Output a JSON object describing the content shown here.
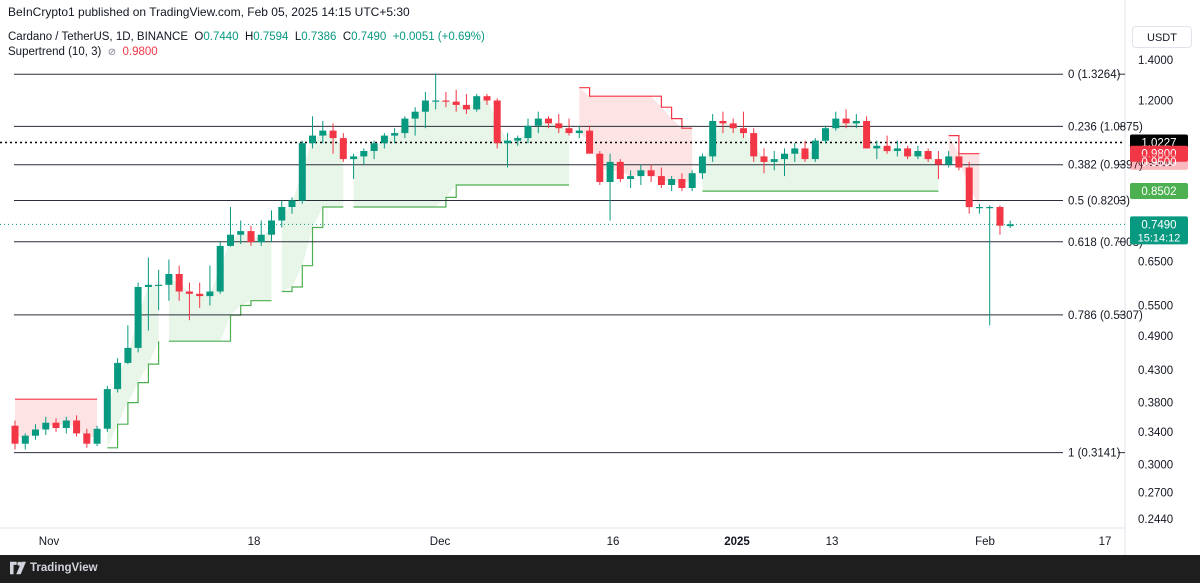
{
  "header": {
    "published": "BeInCrypto1 published on TradingView.com, Feb 05, 2025 14:15 UTC+5:30",
    "currency": "USDT"
  },
  "legend": {
    "symbol": "Cardano / TetherUS, 1D, BINANCE",
    "open_label": "O",
    "open": "0.7440",
    "high_label": "H",
    "high": "0.7594",
    "low_label": "L",
    "low": "0.7386",
    "close_label": "C",
    "close": "0.7490",
    "change": "+0.0051 (+0.69%)",
    "indicator": "Supertrend (10, 3)",
    "indicator_icon": "hidden-eye-icon",
    "indicator_value": "0.9800"
  },
  "footer": {
    "brand": "TradingView",
    "logo": "tradingview-logo-icon"
  },
  "colors": {
    "up": "#089981",
    "down": "#f23645",
    "supertrend_up": "#4caf50",
    "supertrend_down": "#f23645",
    "fill_up": "#e8f5e9",
    "fill_down": "#fde4e4",
    "fib_line": "#2a2e39",
    "resistance_line": "#000000"
  },
  "chart_data": {
    "type": "candlestick",
    "title": "Cardano / TetherUS, 1D, BINANCE",
    "scale": "log",
    "ylim": [
      0.23,
      1.45
    ],
    "grid": false,
    "x_ticks": [
      "Nov",
      "18",
      "Dec",
      "16",
      "2025",
      "13",
      "Feb",
      "17"
    ],
    "y_ticks": [
      "1.4000",
      "1.2000",
      "0.9500",
      "0.6500",
      "0.5500",
      "0.4900",
      "0.4300",
      "0.3800",
      "0.3400",
      "0.3000",
      "0.2700",
      "0.2440"
    ],
    "candles": [
      {
        "o": 0.348,
        "h": 0.355,
        "l": 0.318,
        "c": 0.325
      },
      {
        "o": 0.325,
        "h": 0.338,
        "l": 0.318,
        "c": 0.335
      },
      {
        "o": 0.335,
        "h": 0.35,
        "l": 0.33,
        "c": 0.343
      },
      {
        "o": 0.343,
        "h": 0.36,
        "l": 0.336,
        "c": 0.352
      },
      {
        "o": 0.352,
        "h": 0.358,
        "l": 0.34,
        "c": 0.345
      },
      {
        "o": 0.345,
        "h": 0.36,
        "l": 0.338,
        "c": 0.355
      },
      {
        "o": 0.355,
        "h": 0.362,
        "l": 0.334,
        "c": 0.338
      },
      {
        "o": 0.338,
        "h": 0.344,
        "l": 0.32,
        "c": 0.325
      },
      {
        "o": 0.325,
        "h": 0.348,
        "l": 0.322,
        "c": 0.344
      },
      {
        "o": 0.344,
        "h": 0.405,
        "l": 0.34,
        "c": 0.4
      },
      {
        "o": 0.4,
        "h": 0.45,
        "l": 0.395,
        "c": 0.442
      },
      {
        "o": 0.442,
        "h": 0.51,
        "l": 0.44,
        "c": 0.468
      },
      {
        "o": 0.468,
        "h": 0.6,
        "l": 0.46,
        "c": 0.59
      },
      {
        "o": 0.59,
        "h": 0.66,
        "l": 0.5,
        "c": 0.595
      },
      {
        "o": 0.595,
        "h": 0.63,
        "l": 0.54,
        "c": 0.595
      },
      {
        "o": 0.595,
        "h": 0.655,
        "l": 0.56,
        "c": 0.62
      },
      {
        "o": 0.62,
        "h": 0.64,
        "l": 0.56,
        "c": 0.58
      },
      {
        "o": 0.58,
        "h": 0.6,
        "l": 0.52,
        "c": 0.575
      },
      {
        "o": 0.575,
        "h": 0.6,
        "l": 0.545,
        "c": 0.57
      },
      {
        "o": 0.57,
        "h": 0.64,
        "l": 0.55,
        "c": 0.58
      },
      {
        "o": 0.58,
        "h": 0.7,
        "l": 0.575,
        "c": 0.69
      },
      {
        "o": 0.69,
        "h": 0.8,
        "l": 0.688,
        "c": 0.72
      },
      {
        "o": 0.72,
        "h": 0.76,
        "l": 0.695,
        "c": 0.73
      },
      {
        "o": 0.73,
        "h": 0.745,
        "l": 0.69,
        "c": 0.7
      },
      {
        "o": 0.7,
        "h": 0.76,
        "l": 0.69,
        "c": 0.72
      },
      {
        "o": 0.72,
        "h": 0.79,
        "l": 0.7,
        "c": 0.76
      },
      {
        "o": 0.76,
        "h": 0.82,
        "l": 0.74,
        "c": 0.8
      },
      {
        "o": 0.8,
        "h": 0.83,
        "l": 0.78,
        "c": 0.82
      },
      {
        "o": 0.82,
        "h": 1.03,
        "l": 0.81,
        "c": 1.02
      },
      {
        "o": 1.02,
        "h": 1.13,
        "l": 1.0,
        "c": 1.05
      },
      {
        "o": 1.05,
        "h": 1.11,
        "l": 1.02,
        "c": 1.07
      },
      {
        "o": 1.07,
        "h": 1.1,
        "l": 0.98,
        "c": 1.04
      },
      {
        "o": 1.04,
        "h": 1.06,
        "l": 0.95,
        "c": 0.96
      },
      {
        "o": 0.96,
        "h": 0.98,
        "l": 0.89,
        "c": 0.97
      },
      {
        "o": 0.97,
        "h": 1.0,
        "l": 0.94,
        "c": 0.99
      },
      {
        "o": 0.99,
        "h": 1.03,
        "l": 0.96,
        "c": 1.02
      },
      {
        "o": 1.02,
        "h": 1.06,
        "l": 1.0,
        "c": 1.05
      },
      {
        "o": 1.05,
        "h": 1.08,
        "l": 1.02,
        "c": 1.06
      },
      {
        "o": 1.06,
        "h": 1.13,
        "l": 1.04,
        "c": 1.12
      },
      {
        "o": 1.12,
        "h": 1.17,
        "l": 1.05,
        "c": 1.15
      },
      {
        "o": 1.15,
        "h": 1.24,
        "l": 1.08,
        "c": 1.2
      },
      {
        "o": 1.2,
        "h": 1.33,
        "l": 1.16,
        "c": 1.2
      },
      {
        "o": 1.2,
        "h": 1.24,
        "l": 1.17,
        "c": 1.195
      },
      {
        "o": 1.195,
        "h": 1.25,
        "l": 1.15,
        "c": 1.18
      },
      {
        "o": 1.18,
        "h": 1.23,
        "l": 1.14,
        "c": 1.16
      },
      {
        "o": 1.16,
        "h": 1.23,
        "l": 1.15,
        "c": 1.22
      },
      {
        "o": 1.22,
        "h": 1.23,
        "l": 1.18,
        "c": 1.2
      },
      {
        "o": 1.2,
        "h": 1.21,
        "l": 1.0,
        "c": 1.02
      },
      {
        "o": 1.02,
        "h": 1.06,
        "l": 0.93,
        "c": 1.03
      },
      {
        "o": 1.03,
        "h": 1.05,
        "l": 1.01,
        "c": 1.04
      },
      {
        "o": 1.04,
        "h": 1.12,
        "l": 1.02,
        "c": 1.09
      },
      {
        "o": 1.09,
        "h": 1.15,
        "l": 1.06,
        "c": 1.12
      },
      {
        "o": 1.12,
        "h": 1.13,
        "l": 1.08,
        "c": 1.1
      },
      {
        "o": 1.1,
        "h": 1.14,
        "l": 1.06,
        "c": 1.08
      },
      {
        "o": 1.08,
        "h": 1.12,
        "l": 1.05,
        "c": 1.06
      },
      {
        "o": 1.06,
        "h": 1.09,
        "l": 1.04,
        "c": 1.07
      },
      {
        "o": 1.07,
        "h": 1.09,
        "l": 0.99,
        "c": 0.98
      },
      {
        "o": 0.98,
        "h": 0.99,
        "l": 0.87,
        "c": 0.88
      },
      {
        "o": 0.88,
        "h": 0.98,
        "l": 0.76,
        "c": 0.95
      },
      {
        "o": 0.95,
        "h": 0.96,
        "l": 0.88,
        "c": 0.89
      },
      {
        "o": 0.89,
        "h": 0.92,
        "l": 0.86,
        "c": 0.9
      },
      {
        "o": 0.9,
        "h": 0.94,
        "l": 0.87,
        "c": 0.92
      },
      {
        "o": 0.92,
        "h": 0.94,
        "l": 0.88,
        "c": 0.9
      },
      {
        "o": 0.9,
        "h": 0.93,
        "l": 0.86,
        "c": 0.87
      },
      {
        "o": 0.87,
        "h": 0.9,
        "l": 0.85,
        "c": 0.89
      },
      {
        "o": 0.89,
        "h": 0.91,
        "l": 0.85,
        "c": 0.86
      },
      {
        "o": 0.86,
        "h": 0.92,
        "l": 0.85,
        "c": 0.91
      },
      {
        "o": 0.91,
        "h": 0.98,
        "l": 0.89,
        "c": 0.97
      },
      {
        "o": 0.97,
        "h": 1.14,
        "l": 0.95,
        "c": 1.11
      },
      {
        "o": 1.11,
        "h": 1.15,
        "l": 1.06,
        "c": 1.1
      },
      {
        "o": 1.1,
        "h": 1.12,
        "l": 1.06,
        "c": 1.08
      },
      {
        "o": 1.08,
        "h": 1.15,
        "l": 1.04,
        "c": 1.06
      },
      {
        "o": 1.06,
        "h": 1.08,
        "l": 0.95,
        "c": 0.97
      },
      {
        "o": 0.97,
        "h": 1.0,
        "l": 0.91,
        "c": 0.95
      },
      {
        "o": 0.95,
        "h": 0.99,
        "l": 0.92,
        "c": 0.96
      },
      {
        "o": 0.96,
        "h": 1.0,
        "l": 0.9,
        "c": 0.98
      },
      {
        "o": 0.98,
        "h": 1.02,
        "l": 0.95,
        "c": 1.0
      },
      {
        "o": 1.0,
        "h": 1.03,
        "l": 0.95,
        "c": 0.96
      },
      {
        "o": 0.96,
        "h": 1.04,
        "l": 0.95,
        "c": 1.03
      },
      {
        "o": 1.03,
        "h": 1.09,
        "l": 1.02,
        "c": 1.08
      },
      {
        "o": 1.08,
        "h": 1.15,
        "l": 1.07,
        "c": 1.12
      },
      {
        "o": 1.12,
        "h": 1.16,
        "l": 1.08,
        "c": 1.1
      },
      {
        "o": 1.1,
        "h": 1.14,
        "l": 1.08,
        "c": 1.11
      },
      {
        "o": 1.11,
        "h": 1.13,
        "l": 1.0,
        "c": 1.0
      },
      {
        "o": 1.0,
        "h": 1.03,
        "l": 0.96,
        "c": 1.01
      },
      {
        "o": 1.01,
        "h": 1.05,
        "l": 0.98,
        "c": 0.99
      },
      {
        "o": 0.99,
        "h": 1.03,
        "l": 0.97,
        "c": 1.0
      },
      {
        "o": 1.0,
        "h": 1.01,
        "l": 0.96,
        "c": 0.97
      },
      {
        "o": 0.97,
        "h": 1.01,
        "l": 0.96,
        "c": 0.99
      },
      {
        "o": 0.99,
        "h": 1.0,
        "l": 0.95,
        "c": 0.96
      },
      {
        "o": 0.96,
        "h": 0.99,
        "l": 0.89,
        "c": 0.94
      },
      {
        "o": 0.94,
        "h": 0.99,
        "l": 0.93,
        "c": 0.97
      },
      {
        "o": 0.97,
        "h": 0.99,
        "l": 0.92,
        "c": 0.93
      },
      {
        "o": 0.93,
        "h": 0.95,
        "l": 0.78,
        "c": 0.8
      },
      {
        "o": 0.8,
        "h": 0.81,
        "l": 0.78,
        "c": 0.8
      },
      {
        "o": 0.8,
        "h": 0.805,
        "l": 0.51,
        "c": 0.8
      },
      {
        "o": 0.8,
        "h": 0.805,
        "l": 0.72,
        "c": 0.745
      },
      {
        "o": 0.744,
        "h": 0.7594,
        "l": 0.7386,
        "c": 0.749
      }
    ],
    "supertrend": [
      {
        "from": 0,
        "to": 8,
        "value": 0.385,
        "trend": "down"
      },
      {
        "from": 9,
        "to": 14,
        "values": [
          0.32,
          0.35,
          0.38,
          0.41,
          0.44,
          0.48
        ],
        "trend": "up"
      },
      {
        "from": 15,
        "to": 25,
        "values": [
          0.48,
          0.48,
          0.48,
          0.48,
          0.48,
          0.48,
          0.53,
          0.55,
          0.56,
          0.56,
          0.56
        ],
        "trend": "up"
      },
      {
        "from": 26,
        "to": 32,
        "values": [
          0.58,
          0.59,
          0.64,
          0.74,
          0.8,
          0.8,
          0.8
        ],
        "trend": "up"
      },
      {
        "from": 33,
        "to": 54,
        "values": [
          0.8,
          0.8,
          0.8,
          0.8,
          0.8,
          0.8,
          0.8,
          0.8,
          0.8,
          0.83,
          0.87,
          0.87,
          0.87,
          0.87,
          0.87,
          0.87,
          0.87,
          0.87,
          0.87,
          0.87,
          0.87,
          0.87
        ],
        "trend": "up"
      },
      {
        "from": 55,
        "to": 66,
        "values": [
          1.26,
          1.22,
          1.22,
          1.22,
          1.22,
          1.22,
          1.22,
          1.22,
          1.17,
          1.12,
          1.08,
          1.08
        ],
        "trend": "down"
      },
      {
        "from": 67,
        "to": 90,
        "value": 0.85,
        "trend": "up"
      },
      {
        "from": 91,
        "to": 94,
        "values": [
          1.05,
          0.98,
          0.98,
          0.98
        ],
        "trend": "down"
      }
    ],
    "fib_levels": [
      {
        "ratio": "0",
        "value": 1.3264,
        "label": "0 (1.3264)"
      },
      {
        "ratio": "0.236",
        "value": 1.0875,
        "label": "0.236 (1.0875)"
      },
      {
        "ratio": "0.382",
        "value": 0.9397,
        "label": "0.382 (0.9397)"
      },
      {
        "ratio": "0.5",
        "value": 0.8203,
        "label": "0.5 (0.8203)"
      },
      {
        "ratio": "0.618",
        "value": 0.7008,
        "label": "0.618 (0.7008)"
      },
      {
        "ratio": "0.786",
        "value": 0.5307,
        "label": "0.786 (0.5307)"
      },
      {
        "ratio": "1",
        "value": 0.3141,
        "label": "1 (0.3141)"
      }
    ],
    "resistance_line": 1.0227,
    "price_badges": [
      {
        "value": 1.0227,
        "text": "1.0227",
        "color": "#000000"
      },
      {
        "value": 0.98,
        "text": "0.9800",
        "color": "#f23645"
      },
      {
        "value": 0.95,
        "text": "0.9500",
        "color": "#f23645",
        "muted": true
      },
      {
        "value": 0.8502,
        "text": "0.8502",
        "color": "#4caf50"
      },
      {
        "value": 0.749,
        "text": "0.7490",
        "sub": "15:14:12",
        "color": "#089981"
      }
    ],
    "last_price": 0.749
  }
}
